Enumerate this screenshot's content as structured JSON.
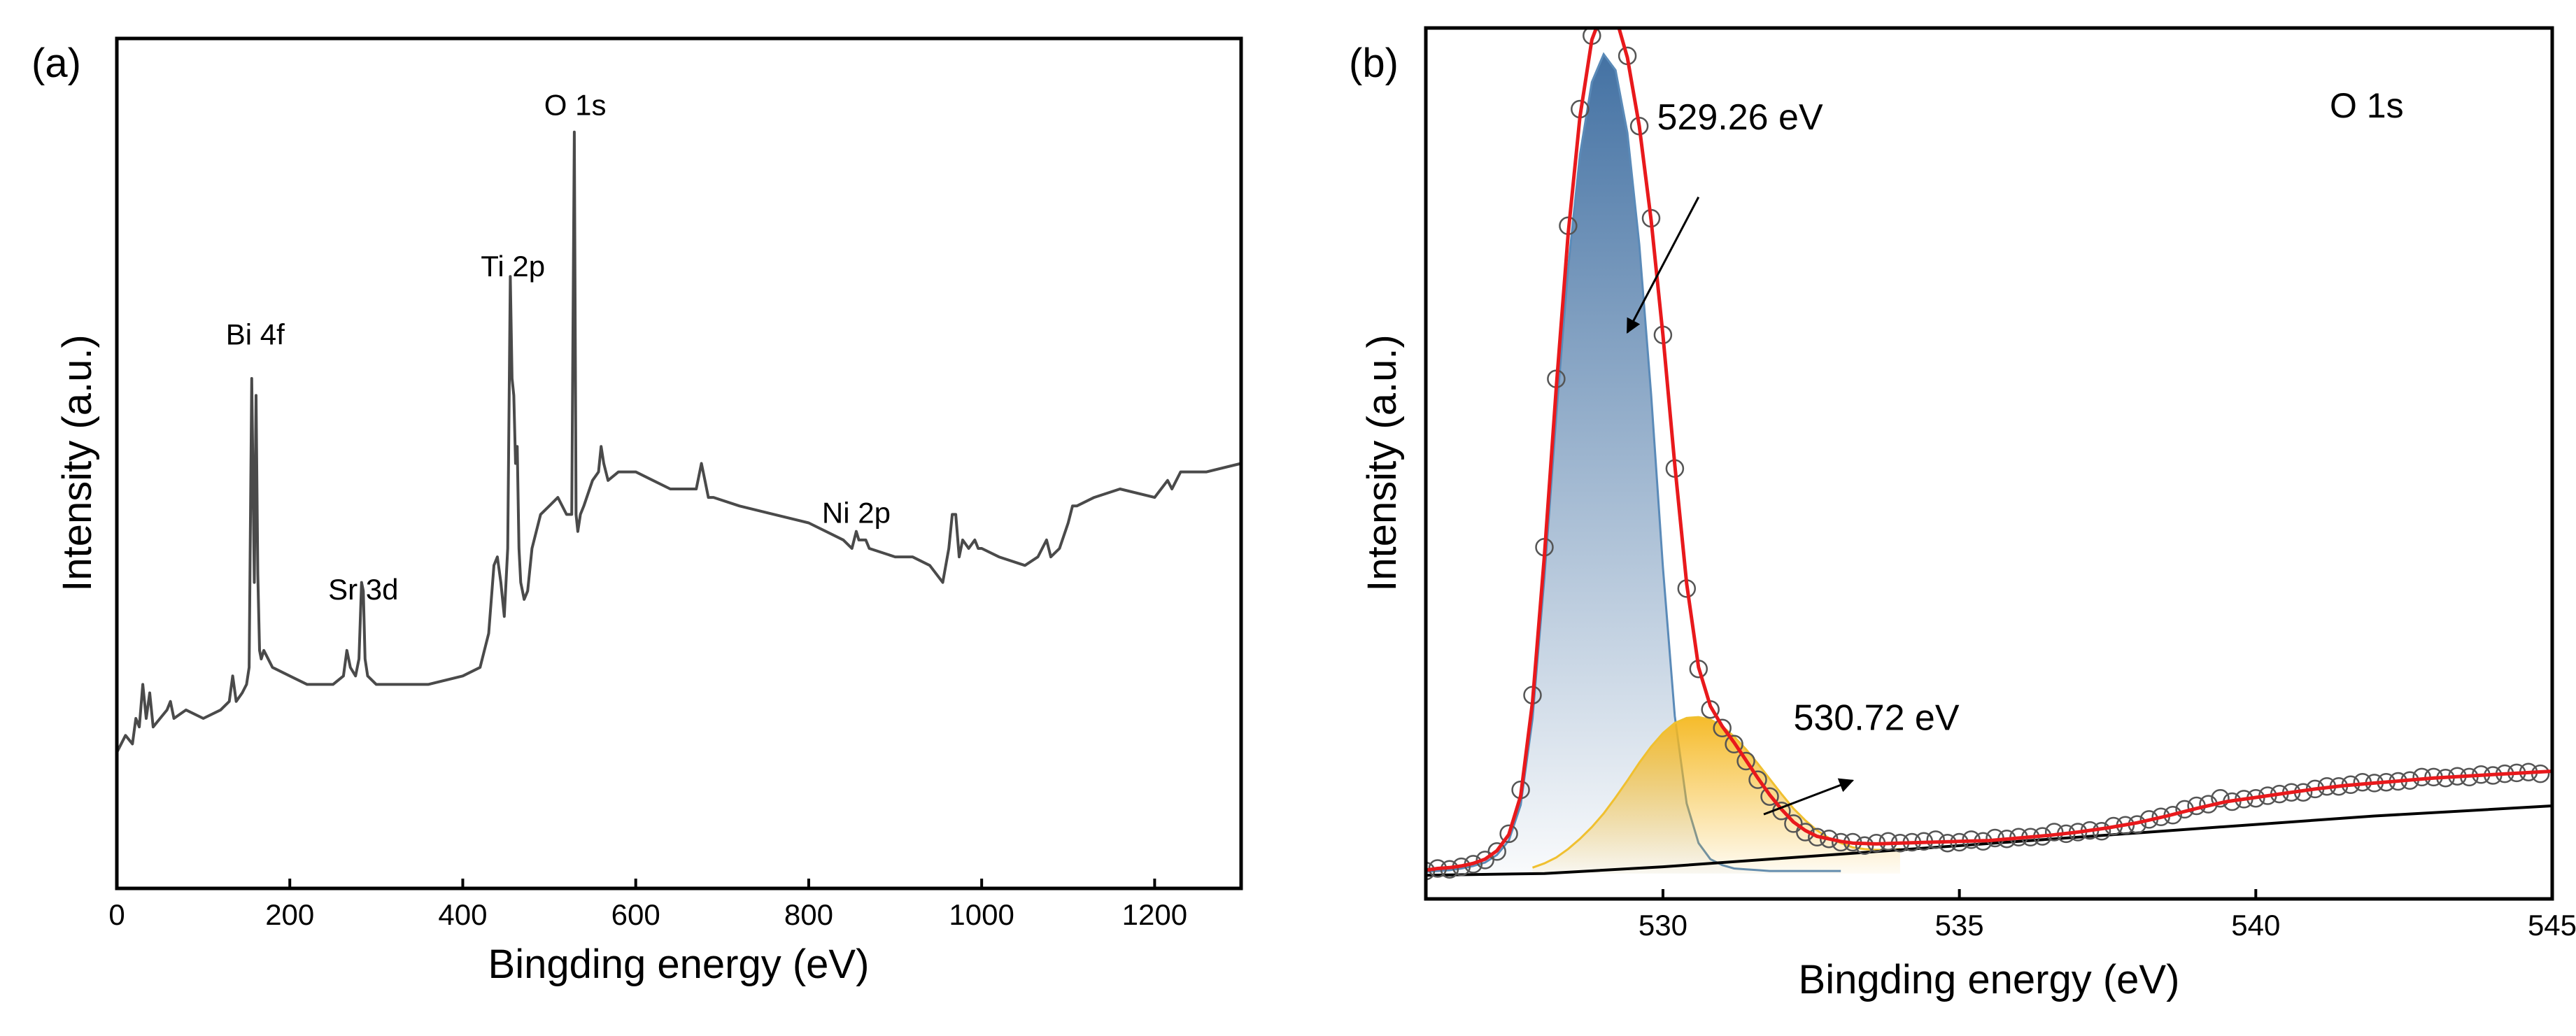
{
  "chart_data": [
    {
      "type": "line",
      "panel_label": "(a)",
      "title": "",
      "xlabel": "Bingding energy (eV)",
      "ylabel": "Intensity (a.u.)",
      "xlim": [
        0,
        1300
      ],
      "ylim": [
        0,
        100
      ],
      "xticks": [
        0,
        200,
        400,
        600,
        800,
        1000,
        1200
      ],
      "xtick_labels": [
        "0",
        "200",
        "400",
        "600",
        "800",
        "1000",
        "1200"
      ],
      "y_ticks_shown": false,
      "grid": false,
      "line_color": "#4a4a4a",
      "peak_labels": [
        {
          "text": "Bi 4f",
          "x": 160,
          "y": 64
        },
        {
          "text": "Sr 3d",
          "x": 285,
          "y": 34
        },
        {
          "text": "Ti 2p",
          "x": 458,
          "y": 72
        },
        {
          "text": "O 1s",
          "x": 530,
          "y": 91
        },
        {
          "text": "Ni 2p",
          "x": 855,
          "y": 43
        }
      ],
      "series": [
        {
          "name": "survey",
          "x": [
            0,
            10,
            18,
            22,
            26,
            30,
            34,
            38,
            42,
            50,
            58,
            62,
            66,
            80,
            100,
            120,
            130,
            134,
            138,
            145,
            150,
            153,
            156,
            159,
            161,
            163,
            165,
            167,
            170,
            180,
            200,
            220,
            250,
            262,
            266,
            270,
            276,
            280,
            283,
            285,
            287,
            290,
            300,
            330,
            360,
            400,
            420,
            430,
            436,
            440,
            444,
            448,
            452,
            455,
            457,
            459,
            461,
            463,
            465,
            467,
            469,
            471,
            475,
            480,
            490,
            500,
            510,
            520,
            526,
            529,
            531,
            533,
            536,
            540,
            550,
            557,
            560,
            563,
            568,
            580,
            600,
            620,
            640,
            660,
            670,
            676,
            680,
            684,
            690,
            720,
            760,
            800,
            840,
            850,
            855,
            858,
            862,
            866,
            870,
            900,
            920,
            940,
            955,
            962,
            966,
            970,
            974,
            978,
            985,
            992,
            996,
            1000,
            1020,
            1050,
            1065,
            1070,
            1075,
            1080,
            1090,
            1100,
            1105,
            1110,
            1130,
            1160,
            1200,
            1215,
            1220,
            1230,
            1260,
            1300
          ],
          "y": [
            16,
            18,
            17,
            20,
            19,
            24,
            20,
            23,
            19,
            20,
            21,
            22,
            20,
            21,
            20,
            21,
            22,
            25,
            22,
            23,
            24,
            26,
            60,
            36,
            58,
            37,
            28,
            27,
            28,
            26,
            25,
            24,
            24,
            25,
            28,
            26,
            25,
            27,
            36,
            35,
            27,
            25,
            24,
            24,
            24,
            25,
            26,
            30,
            38,
            39,
            36,
            32,
            40,
            72,
            60,
            58,
            50,
            52,
            40,
            36,
            35,
            34,
            35,
            40,
            44,
            45,
            46,
            44,
            44,
            89,
            44,
            42,
            44,
            45,
            48,
            49,
            52,
            50,
            48,
            49,
            49,
            48,
            47,
            47,
            47,
            50,
            48,
            46,
            46,
            45,
            44,
            43,
            41,
            40,
            42,
            41,
            41,
            41,
            40,
            39,
            39,
            38,
            36,
            40,
            44,
            44,
            39,
            41,
            40,
            41,
            40,
            40,
            39,
            38,
            39,
            40,
            41,
            39,
            40,
            43,
            45,
            45,
            46,
            47,
            46,
            48,
            47,
            49,
            49,
            50
          ]
        }
      ]
    },
    {
      "type": "line",
      "panel_label": "(b)",
      "title": "",
      "inset_label": "O 1s",
      "xlabel": "Bingding energy (eV)",
      "ylabel": "Intensity (a.u.)",
      "xlim": [
        526,
        545
      ],
      "ylim": [
        -3,
        100
      ],
      "xticks": [
        530,
        535,
        540,
        545
      ],
      "xtick_labels": [
        "530",
        "535",
        "540",
        "545"
      ],
      "y_ticks_shown": false,
      "grid": false,
      "annotations": [
        {
          "text": "529.26 eV",
          "text_x": 531.3,
          "text_y": 88,
          "arrow_from": [
            530.6,
            80
          ],
          "arrow_to": [
            529.4,
            64
          ]
        },
        {
          "text": "530.72 eV",
          "text_x": 533.6,
          "text_y": 17,
          "arrow_from": [
            531.7,
            7
          ],
          "arrow_to": [
            533.2,
            11
          ]
        }
      ],
      "series": [
        {
          "name": "experimental",
          "style": "circles",
          "color": "#555555",
          "x": [
            526.0,
            526.2,
            526.4,
            526.6,
            526.8,
            527.0,
            527.2,
            527.4,
            527.6,
            527.8,
            528.0,
            528.2,
            528.4,
            528.6,
            528.8,
            529.0,
            529.2,
            529.4,
            529.6,
            529.8,
            530.0,
            530.2,
            530.4,
            530.6,
            530.8,
            531.0,
            531.2,
            531.4,
            531.6,
            531.8,
            532.0,
            532.2,
            532.4,
            532.6,
            532.8,
            533.0,
            533.2,
            533.4,
            533.6,
            533.8,
            534.0,
            534.2,
            534.4,
            534.6,
            534.8,
            535.0,
            535.2,
            535.4,
            535.6,
            535.8,
            536.0,
            536.2,
            536.4,
            536.6,
            536.8,
            537.0,
            537.2,
            537.4,
            537.6,
            537.8,
            538.0,
            538.2,
            538.4,
            538.6,
            538.8,
            539.0,
            539.2,
            539.4,
            539.6,
            539.8,
            540.0,
            540.2,
            540.4,
            540.6,
            540.8,
            541.0,
            541.2,
            541.4,
            541.6,
            541.8,
            542.0,
            542.2,
            542.4,
            542.6,
            542.8,
            543.0,
            543.2,
            543.4,
            543.6,
            543.8,
            544.0,
            544.2,
            544.4,
            544.6,
            544.8
          ],
          "y": [
            0.3,
            0.6,
            0.5,
            0.8,
            1.1,
            1.6,
            2.6,
            4.7,
            9.9,
            21.1,
            38.6,
            58.5,
            76.6,
            90.4,
            99.1,
            102.6,
            101.5,
            96.7,
            88.4,
            77.5,
            63.7,
            47.9,
            33.7,
            24.2,
            19.4,
            17.2,
            15.3,
            13.3,
            11.1,
            9.1,
            7.4,
            5.9,
            4.9,
            4.3,
            4.1,
            3.7,
            3.7,
            3.3,
            3.6,
            3.8,
            3.6,
            3.7,
            3.8,
            4.0,
            3.6,
            3.7,
            4.0,
            3.8,
            4.2,
            4.1,
            4.3,
            4.3,
            4.4,
            4.9,
            4.7,
            4.9,
            5.1,
            5.0,
            5.6,
            5.7,
            5.8,
            6.4,
            6.7,
            6.9,
            7.6,
            8.0,
            8.2,
            8.9,
            8.5,
            8.8,
            8.9,
            9.2,
            9.4,
            9.6,
            9.6,
            10.0,
            10.3,
            10.3,
            10.5,
            10.8,
            10.7,
            10.8,
            10.9,
            11.0,
            11.4,
            11.4,
            11.3,
            11.5,
            11.4,
            11.7,
            11.6,
            11.8,
            11.9,
            12.0,
            11.8
          ]
        },
        {
          "name": "peak 529.26 eV",
          "style": "filled",
          "color": "#5a8ab8",
          "fill_color": "#2f6299",
          "x": [
            526.0,
            526.2,
            526.4,
            526.6,
            526.8,
            527.0,
            527.2,
            527.4,
            527.6,
            527.8,
            528.0,
            528.2,
            528.4,
            528.6,
            528.8,
            529.0,
            529.2,
            529.4,
            529.6,
            529.8,
            530.0,
            530.2,
            530.4,
            530.6,
            530.8,
            531.0,
            531.2,
            531.4,
            531.6,
            531.8,
            532.0,
            532.2,
            532.4,
            532.6,
            532.8,
            533.0
          ],
          "y": [
            0.2,
            0.3,
            0.4,
            0.6,
            0.9,
            1.3,
            2.2,
            3.9,
            8.1,
            18.3,
            35.0,
            54.1,
            71.6,
            85.0,
            93.6,
            96.9,
            95.0,
            87.6,
            74.4,
            56.7,
            36.2,
            18.6,
            8.3,
            3.6,
            1.7,
            1.0,
            0.6,
            0.5,
            0.4,
            0.3,
            0.3,
            0.3,
            0.3,
            0.3,
            0.3,
            0.3
          ]
        },
        {
          "name": "peak 530.72 eV",
          "style": "filled",
          "color": "#f0c030",
          "fill_color": "#f5b820",
          "x": [
            527.8,
            528.0,
            528.2,
            528.4,
            528.6,
            528.8,
            529.0,
            529.2,
            529.4,
            529.6,
            529.8,
            530.0,
            530.2,
            530.4,
            530.6,
            530.8,
            531.0,
            531.2,
            531.4,
            531.6,
            531.8,
            532.0,
            532.2,
            532.4,
            532.6,
            532.8,
            533.0,
            533.2,
            533.4,
            533.6,
            533.8,
            534.0
          ],
          "y": [
            0.7,
            1.2,
            1.9,
            2.9,
            4.1,
            5.5,
            7.1,
            9.0,
            11.0,
            13.1,
            15.0,
            16.6,
            17.8,
            18.4,
            18.5,
            18.2,
            17.4,
            16.2,
            14.7,
            13.0,
            11.2,
            9.4,
            7.7,
            6.3,
            5.1,
            4.2,
            3.6,
            3.1,
            2.9,
            2.8,
            2.8,
            2.9
          ]
        },
        {
          "name": "envelope fit",
          "style": "line",
          "color": "#e8191c",
          "x": [
            526.0,
            526.2,
            526.4,
            526.6,
            526.8,
            527.0,
            527.2,
            527.4,
            527.6,
            527.8,
            528.0,
            528.2,
            528.4,
            528.6,
            528.8,
            529.0,
            529.2,
            529.4,
            529.6,
            529.8,
            530.0,
            530.2,
            530.4,
            530.6,
            530.8,
            531.0,
            531.2,
            531.4,
            531.6,
            531.8,
            532.0,
            532.2,
            532.4,
            532.6,
            532.8,
            533.0,
            533.2,
            533.6,
            534.0,
            534.5,
            535.0,
            535.5,
            536.0,
            536.5,
            537.0,
            537.5,
            538.0,
            538.5,
            539.0,
            539.5,
            540.0,
            540.5,
            541.0,
            541.5,
            542.0,
            542.5,
            543.0,
            543.5,
            544.0,
            544.5,
            545.0
          ],
          "y": [
            0.4,
            0.6,
            0.7,
            0.9,
            1.2,
            1.7,
            2.7,
            4.6,
            9.2,
            20.3,
            37.6,
            57.4,
            75.6,
            89.5,
            98.6,
            102.3,
            101.4,
            96.5,
            88.4,
            77.3,
            63.7,
            48.3,
            34.3,
            24.4,
            19.8,
            17.4,
            15.5,
            13.4,
            11.3,
            9.3,
            7.6,
            6.1,
            5.1,
            4.4,
            4.1,
            3.8,
            3.6,
            3.5,
            3.6,
            3.7,
            3.8,
            3.9,
            4.2,
            4.5,
            4.9,
            5.4,
            6.0,
            6.8,
            7.7,
            8.5,
            9.0,
            9.5,
            10.0,
            10.4,
            10.7,
            11.0,
            11.3,
            11.5,
            11.7,
            11.9,
            12.1
          ]
        },
        {
          "name": "background",
          "style": "line",
          "color": "#000000",
          "x": [
            526.0,
            528.0,
            530.0,
            532.0,
            534.0,
            536.0,
            538.0,
            540.0,
            542.0,
            545.0
          ],
          "y": [
            -0.2,
            0.0,
            0.8,
            1.8,
            2.8,
            3.8,
            4.8,
            5.8,
            6.8,
            8.0
          ]
        }
      ]
    }
  ]
}
